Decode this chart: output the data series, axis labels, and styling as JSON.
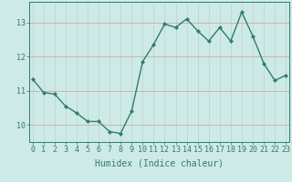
{
  "x": [
    0,
    1,
    2,
    3,
    4,
    5,
    6,
    7,
    8,
    9,
    10,
    11,
    12,
    13,
    14,
    15,
    16,
    17,
    18,
    19,
    20,
    21,
    22,
    23
  ],
  "y": [
    11.35,
    10.95,
    10.9,
    10.55,
    10.35,
    10.1,
    10.1,
    9.8,
    9.75,
    10.4,
    11.85,
    12.35,
    12.95,
    12.85,
    13.1,
    12.75,
    12.45,
    12.85,
    12.45,
    13.3,
    12.6,
    11.8,
    11.3,
    11.45
  ],
  "line_color": "#2e7d6e",
  "marker": "D",
  "marker_size": 2.0,
  "bg_color": "#ceeae6",
  "grid_color_h": "#c4a0a0",
  "grid_color_v": "#b8d4d0",
  "xlabel": "Humidex (Indice chaleur)",
  "xlabel_fontsize": 7,
  "yticks": [
    10,
    11,
    12,
    13
  ],
  "xtick_labels": [
    "0",
    "1",
    "2",
    "3",
    "4",
    "5",
    "6",
    "7",
    "8",
    "9",
    "10",
    "11",
    "12",
    "13",
    "14",
    "15",
    "16",
    "17",
    "18",
    "19",
    "20",
    "21",
    "22",
    "23"
  ],
  "ylim": [
    9.5,
    13.6
  ],
  "xlim": [
    -0.3,
    23.3
  ],
  "tick_fontsize": 6,
  "line_width": 1.0,
  "spine_color": "#2e7d6e"
}
